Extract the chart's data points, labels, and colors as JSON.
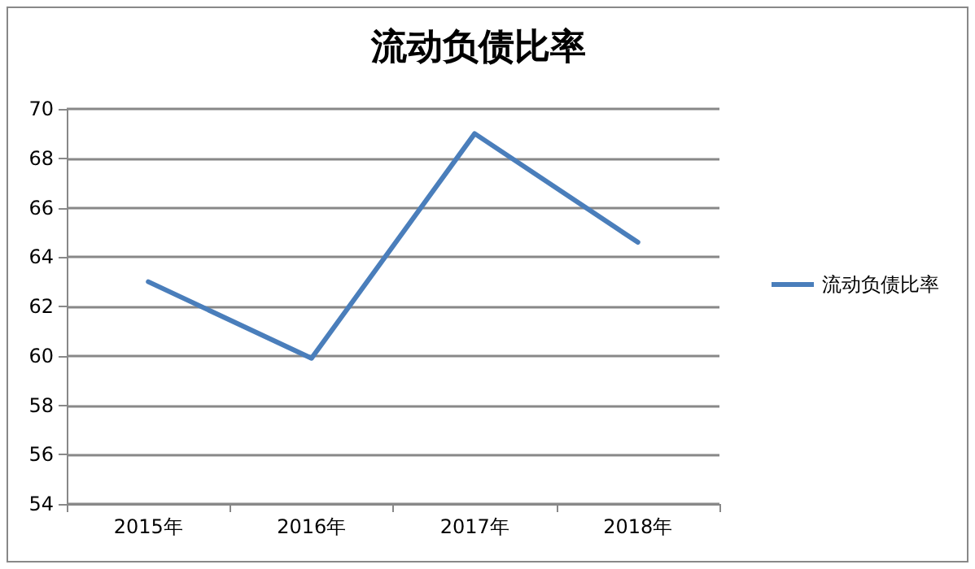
{
  "chart_data": {
    "type": "line",
    "title": "流动负债比率",
    "categories": [
      "2015年",
      "2016年",
      "2017年",
      "2018年"
    ],
    "series": [
      {
        "name": "流动负债比率",
        "color": "#4a7ebb",
        "values": [
          63.0,
          59.9,
          69.0,
          64.6
        ]
      }
    ],
    "ylim": [
      54,
      70
    ],
    "yticks": [
      54,
      56,
      58,
      60,
      62,
      64,
      66,
      68,
      70
    ],
    "grid": "y",
    "legend": "right",
    "marker": "none",
    "line_style": "solid"
  }
}
